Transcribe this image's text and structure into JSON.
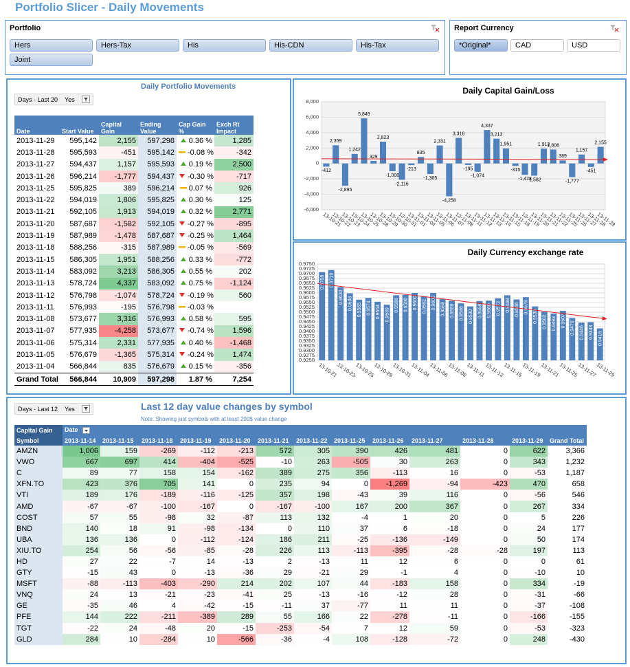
{
  "title": "Portfolio Slicer - Daily Movements",
  "portfolio_slicer": {
    "title": "Portfolio",
    "items": [
      "Hers",
      "Hers-Tax",
      "His",
      "His-CDN",
      "His-Tax",
      "Joint"
    ]
  },
  "currency_slicer": {
    "title": "Report Currency",
    "items": [
      "*Original*",
      "CAD",
      "USD"
    ]
  },
  "movements": {
    "title": "Daily Portfolio Movements",
    "filter": {
      "label": "Days - Last 20",
      "value": "Yes"
    },
    "columns": [
      "Date",
      "Start Value",
      "Capital Gain",
      "Ending Value",
      "Cap Gain %",
      "Exch Rt Impact"
    ],
    "rows": [
      [
        "2013-11-29",
        "595,142",
        "2,155",
        "597,298",
        "0.36 %",
        "1,285"
      ],
      [
        "2013-11-28",
        "595,593",
        "-451",
        "595,142",
        "-0.08 %",
        "-342"
      ],
      [
        "2013-11-27",
        "594,437",
        "1,157",
        "595,593",
        "0.19 %",
        "2,500"
      ],
      [
        "2013-11-26",
        "596,214",
        "-1,777",
        "594,437",
        "-0.30 %",
        "-717"
      ],
      [
        "2013-11-25",
        "595,825",
        "389",
        "596,214",
        "0.07 %",
        "926"
      ],
      [
        "2013-11-22",
        "594,019",
        "1,806",
        "595,825",
        "0.30 %",
        "125"
      ],
      [
        "2013-11-21",
        "592,105",
        "1,913",
        "594,019",
        "0.32 %",
        "2,771"
      ],
      [
        "2013-11-20",
        "587,687",
        "-1,582",
        "592,105",
        "-0.27 %",
        "-895"
      ],
      [
        "2013-11-19",
        "587,989",
        "-1,478",
        "587,687",
        "-0.25 %",
        "1,464"
      ],
      [
        "2013-11-18",
        "588,256",
        "-315",
        "587,989",
        "-0.05 %",
        "-569"
      ],
      [
        "2013-11-15",
        "586,305",
        "1,951",
        "588,256",
        "0.33 %",
        "-772"
      ],
      [
        "2013-11-14",
        "583,092",
        "3,213",
        "586,305",
        "0.55 %",
        "202"
      ],
      [
        "2013-11-13",
        "578,724",
        "4,337",
        "583,092",
        "0.75 %",
        "-1,124"
      ],
      [
        "2013-11-12",
        "576,798",
        "-1,074",
        "578,724",
        "-0.19 %",
        "560"
      ],
      [
        "2013-11-11",
        "576,993",
        "-195",
        "576,798",
        "-0.03 %",
        null
      ],
      [
        "2013-11-08",
        "573,677",
        "3,316",
        "576,993",
        "0.58 %",
        "595"
      ],
      [
        "2013-11-07",
        "577,935",
        "-4,258",
        "573,677",
        "-0.74 %",
        "1,596"
      ],
      [
        "2013-11-06",
        "575,314",
        "2,331",
        "577,935",
        "0.40 %",
        "-1,468"
      ],
      [
        "2013-11-05",
        "576,679",
        "-1,365",
        "575,314",
        "-0.24 %",
        "1,474"
      ],
      [
        "2013-11-04",
        "566,844",
        "835",
        "576,679",
        "0.15 %",
        "-356"
      ]
    ],
    "total": [
      "Grand Total",
      "566,844",
      "10,909",
      "597,298",
      "1.87 %",
      "7,254"
    ]
  },
  "chart_data": [
    {
      "type": "bar",
      "title": "Daily Capital Gain/Loss",
      "color": "#4f81bd",
      "grid": true,
      "trendline": true,
      "trendline_color": "#e02020",
      "value_label_position": "outside",
      "categories": [
        "13-10-21",
        "13-10-22",
        "13-10-23",
        "13-10-24",
        "13-10-25",
        "13-10-28",
        "13-10-29",
        "13-10-30",
        "13-10-31",
        "13-11-01",
        "13-11-04",
        "13-11-05",
        "13-11-06",
        "13-11-07",
        "13-11-08",
        "13-11-11",
        "13-11-12",
        "13-11-13",
        "13-11-14",
        "13-11-15",
        "13-11-18",
        "13-11-19",
        "13-11-20",
        "13-11-21",
        "13-11-22",
        "13-11-25",
        "13-11-26",
        "13-11-27",
        "13-11-28",
        "13-11-29"
      ],
      "values": [
        -412,
        2359,
        -2895,
        1242,
        5849,
        329,
        2823,
        -1008,
        -2116,
        -213,
        835,
        -1365,
        2331,
        -4258,
        3316,
        -195,
        -1074,
        4337,
        3213,
        1951,
        -315,
        -1478,
        -1582,
        1913,
        1806,
        389,
        -1777,
        1157,
        -451,
        2155
      ],
      "value_labels": [
        "-412",
        "2,359",
        "-2,895",
        "1,242",
        "5,849",
        "329",
        "2,823",
        "-1,008",
        "-2,116",
        "-213",
        "835",
        "-1,365",
        "2,331",
        "-4,258",
        "3,316",
        "-195",
        "-1,074",
        "4,337",
        "3,213",
        "1,951",
        "-315",
        "-1,478",
        "-1,582",
        "1,913",
        "1,806",
        "389",
        "-1,777",
        "1,157",
        "-451",
        "2,155"
      ],
      "ylim": [
        -6000,
        8000
      ],
      "yticks": [
        {
          "value": 8000,
          "label": "8,000"
        },
        {
          "value": 6000,
          "label": "6,000"
        },
        {
          "value": 4000,
          "label": "4,000"
        },
        {
          "value": 2000,
          "label": "2,000"
        },
        0,
        {
          "value": -2000,
          "label": "-2,000"
        },
        {
          "value": -4000,
          "label": "-4,000"
        },
        {
          "value": -6000,
          "label": "-6,000"
        }
      ]
    },
    {
      "type": "bar",
      "title": "Daily Currency exchange rate",
      "color": "#4f81bd",
      "grid": true,
      "trendline": true,
      "trendline_color": "#e02020",
      "value_label_position": "inside",
      "categories": [
        "13-10-21",
        null,
        "13-10-23",
        null,
        "13-10-25",
        null,
        "13-10-29",
        null,
        "13-10-31",
        null,
        "13-11-04",
        null,
        "13-11-06",
        null,
        "13-11-08",
        null,
        "13-11-11",
        null,
        "13-11-13",
        null,
        "13-11-15",
        null,
        "13-11-19",
        null,
        "13-11-21",
        null,
        "13-11-25",
        null,
        "13-11-27",
        null,
        "13-11-29"
      ],
      "values": [
        0.9708,
        0.9719,
        0.963,
        0.9598,
        0.9565,
        0.9574,
        0.9554,
        0.9539,
        0.9588,
        0.959,
        0.96,
        0.9582,
        0.96,
        0.9568,
        0.9559,
        0.9546,
        0.953,
        0.9558,
        0.956,
        0.9572,
        0.9588,
        0.9566,
        0.9578,
        0.953,
        0.9502,
        0.9493,
        0.9507,
        0.947,
        0.9446,
        0.9448,
        0.9416
      ],
      "value_labels": [
        "0.9708",
        "0.9719",
        "0.9630",
        "0.9598",
        "0.9565",
        "0.9574",
        "0.9554",
        "0.9539",
        "0.9588",
        "0.9590",
        "0.9600",
        "0.9582",
        "0.9600",
        "0.9568",
        "0.9559",
        "0.9546",
        "0.9530",
        "0.9558",
        "0.9560",
        "0.9572",
        "0.9588",
        "0.9566",
        "0.9578",
        "0.9530",
        "0.9502",
        "0.9493",
        "0.9507",
        "0.9470",
        "0.9446",
        "0.9448",
        "0.9416"
      ],
      "ylim": [
        0.925,
        0.975
      ],
      "yticks": [
        {
          "value": 0.975,
          "label": "0.9750"
        },
        {
          "value": 0.9725,
          "label": "0.9725"
        },
        {
          "value": 0.97,
          "label": "0.9700"
        },
        {
          "value": 0.9675,
          "label": "0.9675"
        },
        {
          "value": 0.965,
          "label": "0.9650"
        },
        {
          "value": 0.9625,
          "label": "0.9625"
        },
        {
          "value": 0.96,
          "label": "0.9600"
        },
        {
          "value": 0.9575,
          "label": "0.9575"
        },
        {
          "value": 0.955,
          "label": "0.9550"
        },
        {
          "value": 0.9525,
          "label": "0.9525"
        },
        {
          "value": 0.95,
          "label": "0.9500"
        },
        {
          "value": 0.9475,
          "label": "0.9475"
        },
        {
          "value": 0.945,
          "label": "0.9450"
        },
        {
          "value": 0.9425,
          "label": "0.9425"
        },
        {
          "value": 0.94,
          "label": "0.9400"
        },
        {
          "value": 0.9375,
          "label": "0.9375"
        },
        {
          "value": 0.935,
          "label": "0.9350"
        },
        {
          "value": 0.9325,
          "label": "0.9325"
        },
        {
          "value": 0.93,
          "label": "0.9300"
        },
        {
          "value": 0.9275,
          "label": "0.9275"
        },
        {
          "value": 0.925,
          "label": "0.9250"
        }
      ]
    }
  ],
  "symbols": {
    "title": "Last 12 day value changes by symbol",
    "note": "Note: Showing just symbols with at least 200$ value change",
    "filter": {
      "label": "Days - Last 12",
      "value": "Yes"
    },
    "corner": "Capital Gain",
    "column_field": "Date",
    "row_field": "Symbol",
    "total_label": "Grand Total",
    "dates": [
      "2013-11-14",
      "2013-11-15",
      "2013-11-18",
      "2013-11-19",
      "2013-11-20",
      "2013-11-21",
      "2013-11-22",
      "2013-11-25",
      "2013-11-26",
      "2013-11-27",
      "2013-11-28",
      "2013-11-29"
    ],
    "rows": [
      {
        "symbol": "AMZN",
        "values": [
          "1,006",
          "159",
          "-269",
          "-112",
          "-213",
          "572",
          "305",
          "390",
          "426",
          "481",
          "0",
          "622"
        ],
        "total": "3,366"
      },
      {
        "symbol": "VWO",
        "values": [
          "667",
          "697",
          "414",
          "-404",
          "-525",
          "-10",
          "263",
          "-505",
          "30",
          "263",
          "0",
          "343"
        ],
        "total": "1,232"
      },
      {
        "symbol": "C",
        "values": [
          "89",
          "77",
          "158",
          "154",
          "-162",
          "389",
          "275",
          "356",
          "-113",
          "16",
          "0",
          "-53"
        ],
        "total": "1,187"
      },
      {
        "symbol": "XFN.TO",
        "values": [
          "423",
          "376",
          "705",
          "141",
          "0",
          "235",
          "94",
          "0",
          "-1,269",
          "-94",
          "-423",
          "470"
        ],
        "total": "658"
      },
      {
        "symbol": "VTI",
        "values": [
          "189",
          "176",
          "-189",
          "-116",
          "-125",
          "357",
          "198",
          "-43",
          "39",
          "116",
          "0",
          "-56"
        ],
        "total": "546"
      },
      {
        "symbol": "AMD",
        "values": [
          "-67",
          "-67",
          "-100",
          "-167",
          "0",
          "-167",
          "-100",
          "167",
          "200",
          "367",
          "0",
          "267"
        ],
        "total": "334"
      },
      {
        "symbol": "COST",
        "values": [
          "57",
          "55",
          "-98",
          "32",
          "-87",
          "113",
          "132",
          "-4",
          "1",
          "20",
          "0",
          "5"
        ],
        "total": "226"
      },
      {
        "symbol": "BND",
        "values": [
          "140",
          "18",
          "91",
          "-98",
          "-134",
          "0",
          "110",
          "37",
          "6",
          "-18",
          "0",
          "24"
        ],
        "total": "177"
      },
      {
        "symbol": "UBA",
        "values": [
          "136",
          "136",
          "0",
          "-112",
          "-124",
          "186",
          "211",
          "-25",
          "-136",
          "-149",
          "0",
          "50"
        ],
        "total": "174"
      },
      {
        "symbol": "XIU.TO",
        "values": [
          "254",
          "56",
          "-56",
          "-85",
          "-28",
          "226",
          "113",
          "-113",
          "-395",
          "-28",
          "-28",
          "197"
        ],
        "total": "113"
      },
      {
        "symbol": "HD",
        "values": [
          "27",
          "22",
          "-7",
          "14",
          "-13",
          "2",
          "-13",
          "11",
          "12",
          "6",
          "0",
          "0"
        ],
        "total": "61"
      },
      {
        "symbol": "GTY",
        "values": [
          "-15",
          "43",
          "0",
          "-13",
          "-36",
          "29",
          "-21",
          "29",
          "-1",
          "4",
          "0",
          "-10"
        ],
        "total": "10"
      },
      {
        "symbol": "MSFT",
        "values": [
          "-88",
          "-113",
          "-403",
          "-290",
          "214",
          "202",
          "107",
          "44",
          "-183",
          "158",
          "0",
          "334"
        ],
        "total": "-19"
      },
      {
        "symbol": "VNQ",
        "values": [
          "24",
          "13",
          "-21",
          "-23",
          "-41",
          "25",
          "-13",
          "-16",
          "-12",
          "28",
          "0",
          "-31"
        ],
        "total": "-66"
      },
      {
        "symbol": "GE",
        "values": [
          "-35",
          "46",
          "4",
          "-42",
          "-15",
          "-11",
          "37",
          "-77",
          "11",
          "11",
          "0",
          "-37"
        ],
        "total": "-108"
      },
      {
        "symbol": "PFE",
        "values": [
          "144",
          "222",
          "-211",
          "-389",
          "289",
          "55",
          "166",
          "22",
          "-278",
          "-11",
          "0",
          "-166"
        ],
        "total": "-155"
      },
      {
        "symbol": "TGT",
        "values": [
          "-22",
          "24",
          "-48",
          "20",
          "-15",
          "-253",
          "-54",
          "7",
          "12",
          "59",
          "0",
          "-53"
        ],
        "total": "-323"
      },
      {
        "symbol": "GLD",
        "values": [
          "284",
          "10",
          "-284",
          "10",
          "-566",
          "-36",
          "-4",
          "108",
          "-128",
          "-72",
          "0",
          "248"
        ],
        "total": "-430"
      }
    ]
  }
}
